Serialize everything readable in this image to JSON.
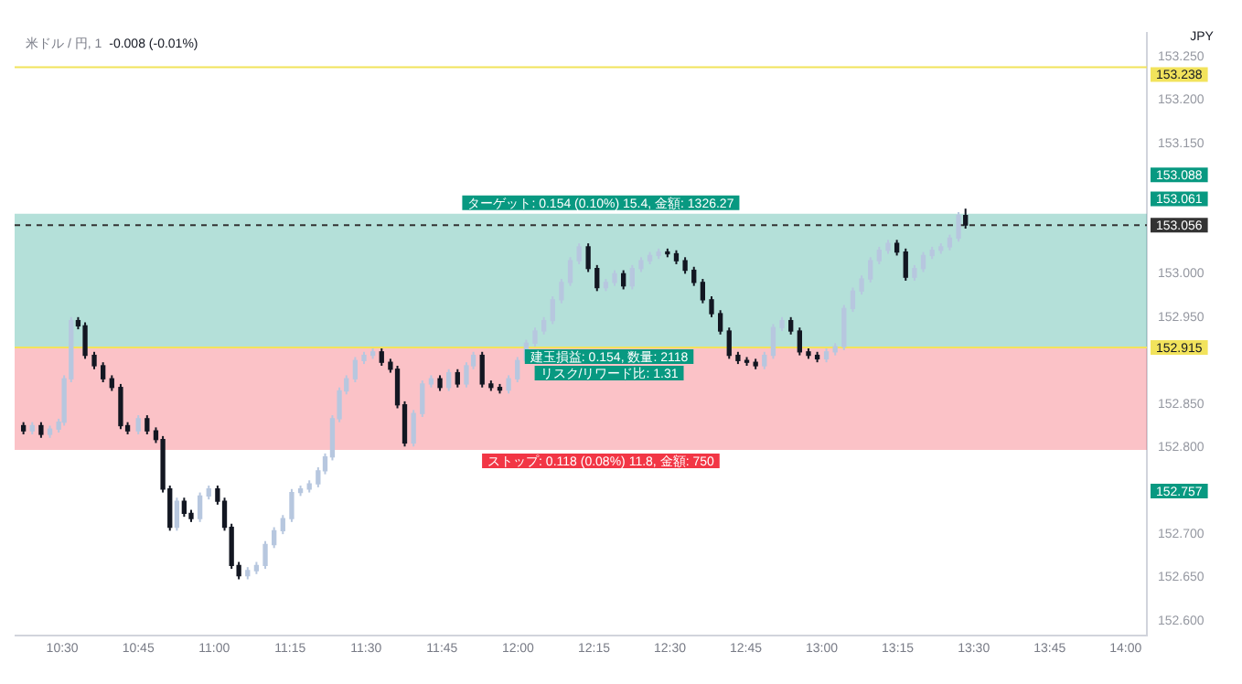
{
  "chart_data": {
    "type": "candlestick",
    "title": "米ドル / 円, 1",
    "subtitle": "-0.008 (-0.01%)",
    "x": [
      10.372,
      10.401,
      10.43,
      10.459,
      10.488,
      10.506,
      10.529,
      10.552,
      10.575,
      10.605,
      10.634,
      10.663,
      10.692,
      10.715,
      10.75,
      10.779,
      10.808,
      10.831,
      10.854,
      10.877,
      10.901,
      10.924,
      10.953,
      10.982,
      11.011,
      11.034,
      11.057,
      11.081,
      11.11,
      11.139,
      11.168,
      11.197,
      11.226,
      11.255,
      11.284,
      11.313,
      11.342,
      11.365,
      11.389,
      11.412,
      11.435,
      11.464,
      11.493,
      11.522,
      11.551,
      11.58,
      11.603,
      11.627,
      11.656,
      11.685,
      11.714,
      11.743,
      11.772,
      11.801,
      11.83,
      11.853,
      11.882,
      11.911,
      11.94,
      11.969,
      11.998,
      12.027,
      12.056,
      12.085,
      12.114,
      12.143,
      12.172,
      12.201,
      12.231,
      12.26,
      12.289,
      12.318,
      12.347,
      12.376,
      12.405,
      12.434,
      12.463,
      12.492,
      12.521,
      12.55,
      12.579,
      12.608,
      12.637,
      12.666,
      12.695,
      12.724,
      12.753,
      12.782,
      12.811,
      12.84,
      12.869,
      12.898,
      12.927,
      12.956,
      12.985,
      13.015,
      13.044,
      13.073,
      13.102,
      13.131,
      13.16,
      13.189,
      13.218,
      13.247,
      13.276,
      13.305,
      13.334,
      13.363,
      13.392,
      13.421,
      13.45,
      13.473
    ],
    "ohlc": [
      [
        152.825,
        152.829,
        152.815,
        152.819
      ],
      [
        152.819,
        152.829,
        152.815,
        152.825
      ],
      [
        152.825,
        152.829,
        152.811,
        152.815
      ],
      [
        152.815,
        152.825,
        152.811,
        152.821
      ],
      [
        152.821,
        152.833,
        152.817,
        152.829
      ],
      [
        152.829,
        152.883,
        152.825,
        152.879
      ],
      [
        152.879,
        152.95,
        152.875,
        152.946
      ],
      [
        152.946,
        152.95,
        152.936,
        152.94
      ],
      [
        152.94,
        152.944,
        152.902,
        152.906
      ],
      [
        152.906,
        152.91,
        152.89,
        152.894
      ],
      [
        152.894,
        152.898,
        152.875,
        152.879
      ],
      [
        152.879,
        152.883,
        152.865,
        152.869
      ],
      [
        152.869,
        152.873,
        152.821,
        152.825
      ],
      [
        152.825,
        152.829,
        152.815,
        152.819
      ],
      [
        152.819,
        152.837,
        152.815,
        152.833
      ],
      [
        152.833,
        152.837,
        152.815,
        152.819
      ],
      [
        152.819,
        152.823,
        152.805,
        152.809
      ],
      [
        152.809,
        152.813,
        152.748,
        152.752
      ],
      [
        152.752,
        152.756,
        152.704,
        152.708
      ],
      [
        152.708,
        152.742,
        152.704,
        152.738
      ],
      [
        152.738,
        152.742,
        152.72,
        152.724
      ],
      [
        152.724,
        152.728,
        152.714,
        152.718
      ],
      [
        152.718,
        152.748,
        152.714,
        152.744
      ],
      [
        152.744,
        152.756,
        152.74,
        152.752
      ],
      [
        152.752,
        152.756,
        152.734,
        152.738
      ],
      [
        152.738,
        152.742,
        152.704,
        152.708
      ],
      [
        152.708,
        152.712,
        152.66,
        152.664
      ],
      [
        152.664,
        152.668,
        152.648,
        152.652
      ],
      [
        152.652,
        152.662,
        152.648,
        152.658
      ],
      [
        152.658,
        152.668,
        152.654,
        152.664
      ],
      [
        152.664,
        152.692,
        152.66,
        152.688
      ],
      [
        152.688,
        152.708,
        152.684,
        152.704
      ],
      [
        152.704,
        152.722,
        152.7,
        152.718
      ],
      [
        152.718,
        152.752,
        152.714,
        152.748
      ],
      [
        152.748,
        152.756,
        152.744,
        152.752
      ],
      [
        152.752,
        152.762,
        152.748,
        152.758
      ],
      [
        152.758,
        152.777,
        152.754,
        152.773
      ],
      [
        152.773,
        152.793,
        152.769,
        152.789
      ],
      [
        152.789,
        152.837,
        152.785,
        152.833
      ],
      [
        152.833,
        152.869,
        152.829,
        152.865
      ],
      [
        152.865,
        152.883,
        152.861,
        152.879
      ],
      [
        152.879,
        152.904,
        152.875,
        152.9
      ],
      [
        152.9,
        152.91,
        152.896,
        152.906
      ],
      [
        152.906,
        152.914,
        152.902,
        152.91
      ],
      [
        152.91,
        152.914,
        152.894,
        152.898
      ],
      [
        152.898,
        152.902,
        152.886,
        152.89
      ],
      [
        152.89,
        152.894,
        152.845,
        152.849
      ],
      [
        152.849,
        152.853,
        152.801,
        152.805
      ],
      [
        152.805,
        152.843,
        152.801,
        152.839
      ],
      [
        152.839,
        152.877,
        152.835,
        152.873
      ],
      [
        152.873,
        152.883,
        152.869,
        152.879
      ],
      [
        152.879,
        152.883,
        152.865,
        152.869
      ],
      [
        152.869,
        152.89,
        152.865,
        152.886
      ],
      [
        152.886,
        152.89,
        152.869,
        152.873
      ],
      [
        152.873,
        152.898,
        152.869,
        152.894
      ],
      [
        152.894,
        152.91,
        152.89,
        152.906
      ],
      [
        152.906,
        152.91,
        152.869,
        152.873
      ],
      [
        152.873,
        152.877,
        152.865,
        152.869
      ],
      [
        152.869,
        152.873,
        152.862,
        152.866
      ],
      [
        152.866,
        152.883,
        152.862,
        152.879
      ],
      [
        152.879,
        152.904,
        152.875,
        152.9
      ],
      [
        152.9,
        152.924,
        152.896,
        152.92
      ],
      [
        152.92,
        152.938,
        152.916,
        152.934
      ],
      [
        152.934,
        152.95,
        152.93,
        152.946
      ],
      [
        152.946,
        152.974,
        152.942,
        152.97
      ],
      [
        152.97,
        152.994,
        152.966,
        152.99
      ],
      [
        152.99,
        153.019,
        152.986,
        153.015
      ],
      [
        153.015,
        153.035,
        153.011,
        153.031
      ],
      [
        153.031,
        153.035,
        153.002,
        153.006
      ],
      [
        153.006,
        153.01,
        152.98,
        152.984
      ],
      [
        152.984,
        152.994,
        152.98,
        152.99
      ],
      [
        152.99,
        153.004,
        152.986,
        153
      ],
      [
        153,
        153.004,
        152.982,
        152.986
      ],
      [
        152.986,
        153.01,
        152.982,
        153.006
      ],
      [
        153.006,
        153.019,
        153.002,
        153.015
      ],
      [
        153.015,
        153.025,
        153.011,
        153.021
      ],
      [
        153.021,
        153.029,
        153.017,
        153.025
      ],
      [
        153.025,
        153.029,
        153.019,
        153.023
      ],
      [
        153.023,
        153.027,
        153.011,
        153.015
      ],
      [
        153.015,
        153.019,
        153,
        153.004
      ],
      [
        153.004,
        153.008,
        152.986,
        152.99
      ],
      [
        152.99,
        152.994,
        152.966,
        152.97
      ],
      [
        152.97,
        152.974,
        152.95,
        152.954
      ],
      [
        152.954,
        152.958,
        152.93,
        152.934
      ],
      [
        152.934,
        152.938,
        152.902,
        152.906
      ],
      [
        152.906,
        152.91,
        152.896,
        152.9
      ],
      [
        152.9,
        152.904,
        152.894,
        152.898
      ],
      [
        152.898,
        152.902,
        152.89,
        152.894
      ],
      [
        152.894,
        152.91,
        152.89,
        152.906
      ],
      [
        152.906,
        152.942,
        152.902,
        152.938
      ],
      [
        152.938,
        152.95,
        152.934,
        152.946
      ],
      [
        152.946,
        152.95,
        152.93,
        152.934
      ],
      [
        152.934,
        152.938,
        152.906,
        152.91
      ],
      [
        152.91,
        152.914,
        152.902,
        152.906
      ],
      [
        152.906,
        152.91,
        152.898,
        152.902
      ],
      [
        152.902,
        152.914,
        152.898,
        152.91
      ],
      [
        152.91,
        152.92,
        152.906,
        152.916
      ],
      [
        152.916,
        152.964,
        152.912,
        152.96
      ],
      [
        152.96,
        152.984,
        152.956,
        152.98
      ],
      [
        152.98,
        152.998,
        152.976,
        152.994
      ],
      [
        152.994,
        153.019,
        152.99,
        153.015
      ],
      [
        153.015,
        153.031,
        153.011,
        153.027
      ],
      [
        153.027,
        153.039,
        153.023,
        153.035
      ],
      [
        153.035,
        153.039,
        153.021,
        153.025
      ],
      [
        153.025,
        153.029,
        152.992,
        152.996
      ],
      [
        152.996,
        153.01,
        152.992,
        153.006
      ],
      [
        153.006,
        153.025,
        153.002,
        153.021
      ],
      [
        153.021,
        153.031,
        153.017,
        153.027
      ],
      [
        153.027,
        153.035,
        153.023,
        153.031
      ],
      [
        153.031,
        153.045,
        153.027,
        153.041
      ],
      [
        153.041,
        153.071,
        153.037,
        153.067
      ],
      [
        153.067,
        153.075,
        153.052,
        153.056
      ]
    ],
    "xlim": [
      10.343,
      14.07
    ],
    "xticks": [
      {
        "value": 10.5,
        "label": "10:30"
      },
      {
        "value": 10.75,
        "label": "10:45"
      },
      {
        "value": 11,
        "label": "11:00"
      },
      {
        "value": 11.25,
        "label": "11:15"
      },
      {
        "value": 11.5,
        "label": "11:30"
      },
      {
        "value": 11.75,
        "label": "11:45"
      },
      {
        "value": 12,
        "label": "12:00"
      },
      {
        "value": 12.25,
        "label": "12:15"
      },
      {
        "value": 12.5,
        "label": "12:30"
      },
      {
        "value": 12.75,
        "label": "12:45"
      },
      {
        "value": 13,
        "label": "13:00"
      },
      {
        "value": 13.25,
        "label": "13:15"
      },
      {
        "value": 13.5,
        "label": "13:30"
      },
      {
        "value": 13.75,
        "label": "13:45"
      },
      {
        "value": 14,
        "label": "14:00"
      }
    ],
    "ylim": [
      152.583,
      153.277
    ],
    "yticks": [
      {
        "value": 152.6,
        "label": "152.600"
      },
      {
        "value": 152.65,
        "label": "152.650"
      },
      {
        "value": 152.7,
        "label": "152.700"
      },
      {
        "value": 152.8,
        "label": "152.800"
      },
      {
        "value": 152.85,
        "label": "152.850"
      },
      {
        "value": 152.95,
        "label": "152.950"
      },
      {
        "value": 153,
        "label": "153.000"
      },
      {
        "value": 153.15,
        "label": "153.150"
      },
      {
        "value": 153.2,
        "label": "153.200"
      },
      {
        "value": 153.25,
        "label": "153.250"
      }
    ],
    "ref_lines": [
      {
        "axis": "y",
        "value": 153.238,
        "label": "153.238",
        "color": "#f2e35c"
      },
      {
        "axis": "y",
        "value": 152.915,
        "label": "152.915",
        "color": "#f2e35c"
      },
      {
        "axis": "y",
        "value": 153.056,
        "label": "153.056",
        "color": "#333333",
        "line_style": "dashed"
      }
    ],
    "bands": [
      {
        "axis": "y",
        "from": 152.915,
        "to": 153.069,
        "label": "ターゲット: 0.154 (0.10%) 15.4, 金額: 1326.27",
        "color": "#089981"
      },
      {
        "axis": "y",
        "from": 152.797,
        "to": 152.915,
        "label": "ストップ: 0.118 (0.08%) 11.8, 金額: 750",
        "color": "#f23645"
      }
    ],
    "annotations": [
      "JPY",
      "153.088",
      "153.061",
      "152.757",
      {
        "text": "建玉損益: 0.154, 数量: 2118",
        "x": 12.3,
        "y": 152.915
      },
      {
        "text": "リスク/リワード比: 1.31",
        "x": 12.3,
        "y": 152.915
      }
    ]
  }
}
